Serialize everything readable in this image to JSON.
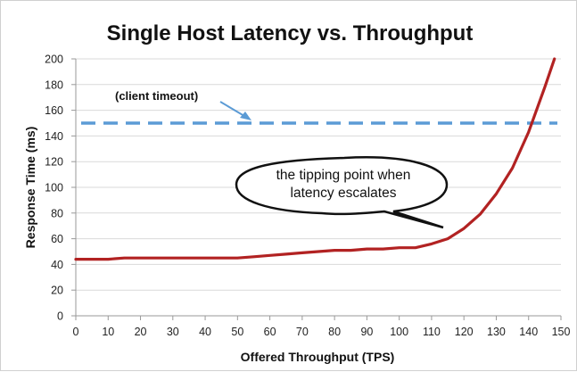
{
  "chart_data": {
    "type": "line",
    "title": "Single Host Latency vs. Throughput",
    "xlabel": "Offered Throughput (TPS)",
    "ylabel": "Response Time (ms)",
    "xlim": [
      0,
      150
    ],
    "ylim": [
      0,
      200
    ],
    "xticks": [
      0,
      10,
      20,
      30,
      40,
      50,
      60,
      70,
      80,
      90,
      100,
      110,
      120,
      130,
      140,
      150
    ],
    "yticks": [
      0,
      20,
      40,
      60,
      80,
      100,
      120,
      140,
      160,
      180,
      200
    ],
    "grid": "horizontal",
    "legend": "none",
    "series": [
      {
        "color": "#b22222",
        "x": [
          0,
          5,
          10,
          15,
          20,
          25,
          30,
          35,
          40,
          45,
          50,
          55,
          60,
          65,
          70,
          75,
          80,
          85,
          90,
          95,
          100,
          105,
          110,
          115,
          120,
          125,
          130,
          135,
          140,
          145,
          148
        ],
        "y": [
          44,
          44,
          44,
          45,
          45,
          45,
          45,
          45,
          45,
          45,
          45,
          46,
          47,
          48,
          49,
          50,
          51,
          51,
          52,
          52,
          53,
          53,
          56,
          60,
          68,
          79,
          95,
          115,
          143,
          178,
          200
        ]
      }
    ],
    "reference_line": {
      "y": 150,
      "style": "dashed",
      "color": "#5b9bd5",
      "label": "(client timeout)"
    },
    "callout": {
      "line1": "the tipping point when",
      "line2": "latency escalates",
      "target_x": 115,
      "target_y": 60
    }
  }
}
